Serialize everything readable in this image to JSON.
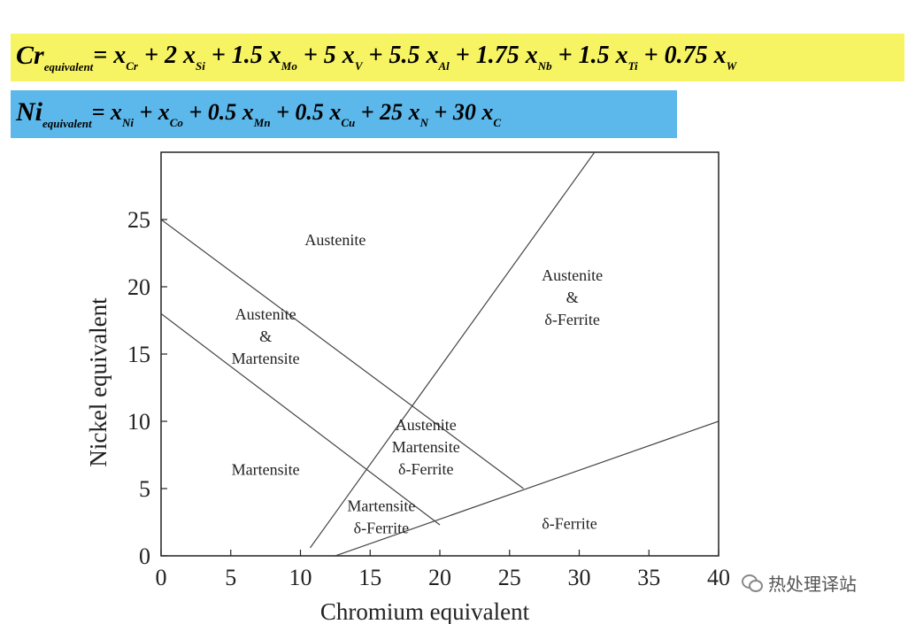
{
  "formulas": {
    "cr": {
      "lhs_main": "Cr",
      "lhs_sub": "equivalent",
      "terms": [
        {
          "prefix": " = x",
          "sub": "Cr"
        },
        {
          "prefix": " + 2 x",
          "sub": "Si"
        },
        {
          "prefix": " + 1.5 x",
          "sub": "Mo"
        },
        {
          "prefix": " + 5 x",
          "sub": "V"
        },
        {
          "prefix": " + 5.5 x",
          "sub": "Al"
        },
        {
          "prefix": " + 1.75 x",
          "sub": "Nb"
        },
        {
          "prefix": " + 1.5 x",
          "sub": "Ti"
        },
        {
          "prefix": " + 0.75 x",
          "sub": "W"
        }
      ],
      "background": "#f7f463"
    },
    "ni": {
      "lhs_main": "Ni",
      "lhs_sub": "equivalent",
      "terms": [
        {
          "prefix": " = x",
          "sub": "Ni"
        },
        {
          "prefix": " + x",
          "sub": "Co"
        },
        {
          "prefix": " + 0.5 x",
          "sub": "Mn"
        },
        {
          "prefix": " + 0.5 x",
          "sub": "Cu"
        },
        {
          "prefix": " + 25 x",
          "sub": "N"
        },
        {
          "prefix": " + 30 x",
          "sub": "C"
        }
      ],
      "background": "#5cb8ea"
    }
  },
  "chart_data": {
    "type": "line",
    "title": "",
    "xlabel": "Chromium equivalent",
    "ylabel": "Nickel equivalent",
    "xlim": [
      0,
      40
    ],
    "ylim": [
      0,
      30
    ],
    "xticks": [
      0,
      5,
      10,
      15,
      20,
      25,
      30,
      35,
      40
    ],
    "yticks": [
      0,
      5,
      10,
      15,
      20,
      25
    ],
    "xtick_labels": [
      "0",
      "5",
      "10",
      "15",
      "20",
      "25",
      "30",
      "35",
      "40"
    ],
    "ytick_labels": [
      "0",
      "5",
      "10",
      "15",
      "20",
      "25"
    ],
    "grid": false,
    "boundaries": [
      {
        "x": [
          0,
          26
        ],
        "y": [
          25,
          5
        ]
      },
      {
        "x": [
          0,
          20
        ],
        "y": [
          18,
          2.3
        ]
      },
      {
        "x": [
          10.7,
          31.1
        ],
        "y": [
          0.6,
          30
        ]
      },
      {
        "x": [
          12.5,
          40
        ],
        "y": [
          0,
          10
        ]
      }
    ],
    "regions": [
      {
        "lines": [
          "Austenite"
        ],
        "x": 12.5,
        "y": 23.5
      },
      {
        "lines": [
          "Austenite",
          "&",
          "δ-Ferrite"
        ],
        "x": 29.5,
        "y": 19.2
      },
      {
        "lines": [
          "Austenite",
          "&",
          "Martensite"
        ],
        "x": 7.5,
        "y": 16.3
      },
      {
        "lines": [
          "Martensite"
        ],
        "x": 7.5,
        "y": 6.4
      },
      {
        "lines": [
          "Austenite",
          "Martensite",
          "δ-Ferrite"
        ],
        "x": 19,
        "y": 8.1
      },
      {
        "lines": [
          "Martensite",
          "δ-Ferrite"
        ],
        "x": 15.8,
        "y": 2.9
      },
      {
        "lines": [
          "δ-Ferrite"
        ],
        "x": 29.3,
        "y": 2.4
      }
    ]
  },
  "watermark": {
    "text": "热处理译站",
    "icon": "wechat-icon"
  }
}
